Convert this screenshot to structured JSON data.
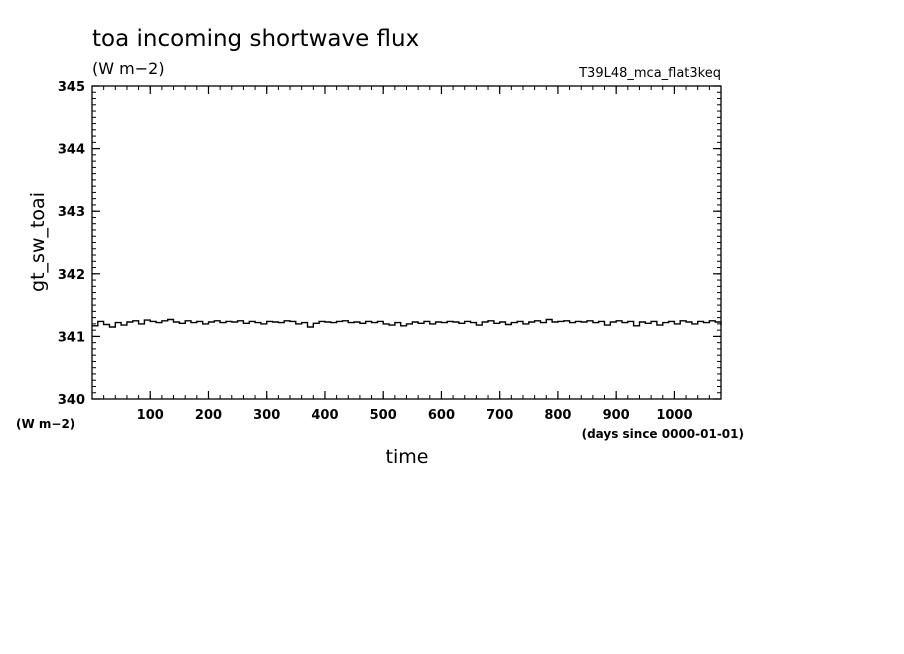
{
  "chart_data": {
    "type": "line",
    "title": "toa incoming shortwave flux",
    "subtitle": "(W m−2)",
    "run_label": "T39L48_mca_flat3keq",
    "xlabel": "time",
    "x_units": "(days since 0000-01-01)",
    "ylabel": "gt_sw_toai",
    "y_units": "(W m−2)",
    "xlim": [
      0,
      1080
    ],
    "ylim": [
      340,
      345
    ],
    "x_ticks": [
      100,
      200,
      300,
      400,
      500,
      600,
      700,
      800,
      900,
      1000
    ],
    "y_ticks": [
      340,
      341,
      342,
      343,
      344,
      345
    ],
    "grid": false,
    "series": [
      {
        "color": "#000000",
        "x": [
          0,
          10,
          20,
          30,
          40,
          50,
          60,
          70,
          80,
          90,
          100,
          110,
          120,
          130,
          140,
          150,
          160,
          170,
          180,
          190,
          200,
          210,
          220,
          230,
          240,
          250,
          260,
          270,
          280,
          290,
          300,
          310,
          320,
          330,
          340,
          350,
          360,
          370,
          380,
          390,
          400,
          410,
          420,
          430,
          440,
          450,
          460,
          470,
          480,
          490,
          500,
          510,
          520,
          530,
          540,
          550,
          560,
          570,
          580,
          590,
          600,
          610,
          620,
          630,
          640,
          650,
          660,
          670,
          680,
          690,
          700,
          710,
          720,
          730,
          740,
          750,
          760,
          770,
          780,
          790,
          800,
          810,
          820,
          830,
          840,
          850,
          860,
          870,
          880,
          890,
          900,
          910,
          920,
          930,
          940,
          950,
          960,
          970,
          980,
          990,
          1000,
          1010,
          1020,
          1030,
          1040,
          1050,
          1060,
          1070,
          1080
        ],
        "y": [
          341.17,
          341.24,
          341.19,
          341.15,
          341.22,
          341.18,
          341.23,
          341.25,
          341.2,
          341.26,
          341.24,
          341.22,
          341.25,
          341.27,
          341.23,
          341.21,
          341.25,
          341.22,
          341.24,
          341.2,
          341.23,
          341.25,
          341.22,
          341.24,
          341.23,
          341.25,
          341.21,
          341.24,
          341.22,
          341.2,
          341.24,
          341.23,
          341.22,
          341.25,
          341.24,
          341.2,
          341.22,
          341.15,
          341.21,
          341.24,
          341.23,
          341.22,
          341.24,
          341.25,
          341.22,
          341.23,
          341.21,
          341.24,
          341.22,
          341.24,
          341.2,
          341.18,
          341.22,
          341.17,
          341.2,
          341.23,
          341.21,
          341.24,
          341.2,
          341.23,
          341.22,
          341.24,
          341.23,
          341.21,
          341.24,
          341.22,
          341.18,
          341.23,
          341.25,
          341.21,
          341.23,
          341.19,
          341.22,
          341.24,
          341.2,
          341.23,
          341.25,
          341.22,
          341.27,
          341.23,
          341.24,
          341.25,
          341.22,
          341.24,
          341.23,
          341.25,
          341.22,
          341.24,
          341.18,
          341.23,
          341.25,
          341.22,
          341.24,
          341.17,
          341.23,
          341.21,
          341.24,
          341.18,
          341.22,
          341.24,
          341.2,
          341.25,
          341.23,
          341.2,
          341.24,
          341.22,
          341.25,
          341.23,
          341.18
        ]
      }
    ]
  }
}
